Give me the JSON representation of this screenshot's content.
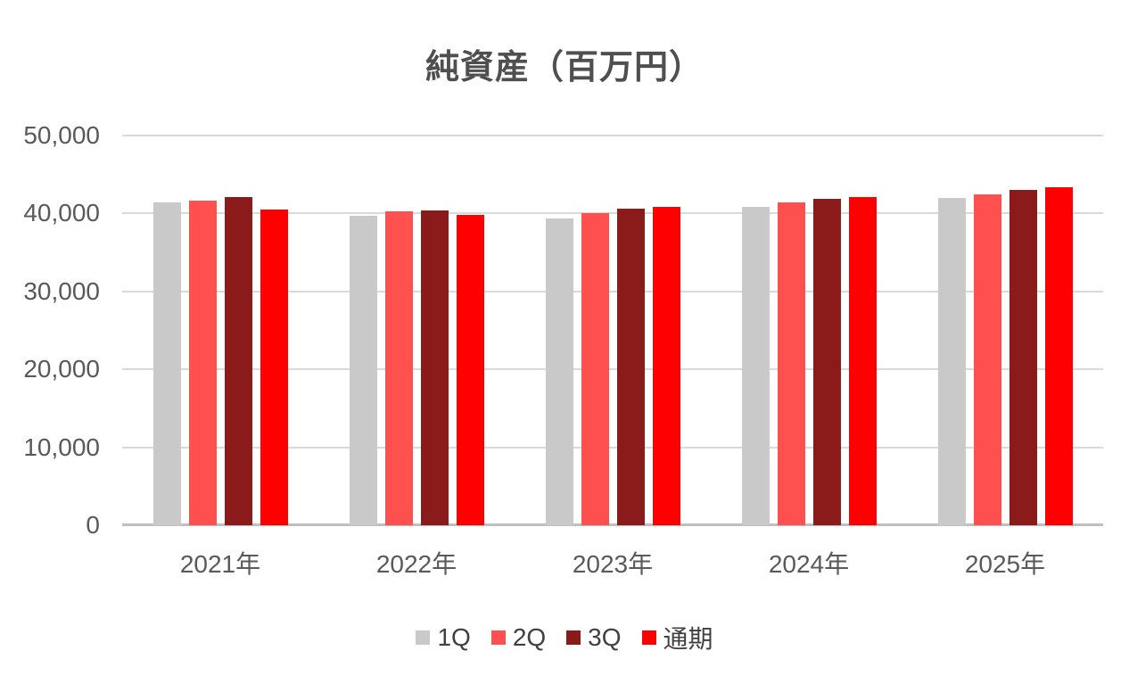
{
  "chart_data": {
    "type": "bar",
    "title": "純資産（百万円）",
    "categories": [
      "2021年",
      "2022年",
      "2023年",
      "2024年",
      "2025年"
    ],
    "series": [
      {
        "name": "1Q",
        "color": "#c9c9c9",
        "values": [
          41400,
          39700,
          39400,
          40800,
          42000
        ]
      },
      {
        "name": "2Q",
        "color": "#ff5050",
        "values": [
          41600,
          40300,
          40000,
          41400,
          42500
        ]
      },
      {
        "name": "3Q",
        "color": "#8b1a1a",
        "values": [
          42100,
          40400,
          40600,
          41900,
          43000
        ]
      },
      {
        "name": "通期",
        "color": "#ff0000",
        "values": [
          40500,
          39800,
          40800,
          42100,
          43400
        ]
      }
    ],
    "ylim": [
      0,
      50000
    ],
    "yticks": [
      0,
      10000,
      20000,
      30000,
      40000,
      50000
    ],
    "ytick_labels": [
      "0",
      "10,000",
      "20,000",
      "30,000",
      "40,000",
      "50,000"
    ],
    "xlabel": "",
    "ylabel": "",
    "grid": true,
    "legend_position": "bottom",
    "colors": {
      "axis_text": "#595959",
      "title_text": "#4f4f4f",
      "legend_text": "#404040",
      "gridline": "#d9d9d9",
      "axis_line": "#bfbfbf",
      "background": "#ffffff"
    }
  }
}
